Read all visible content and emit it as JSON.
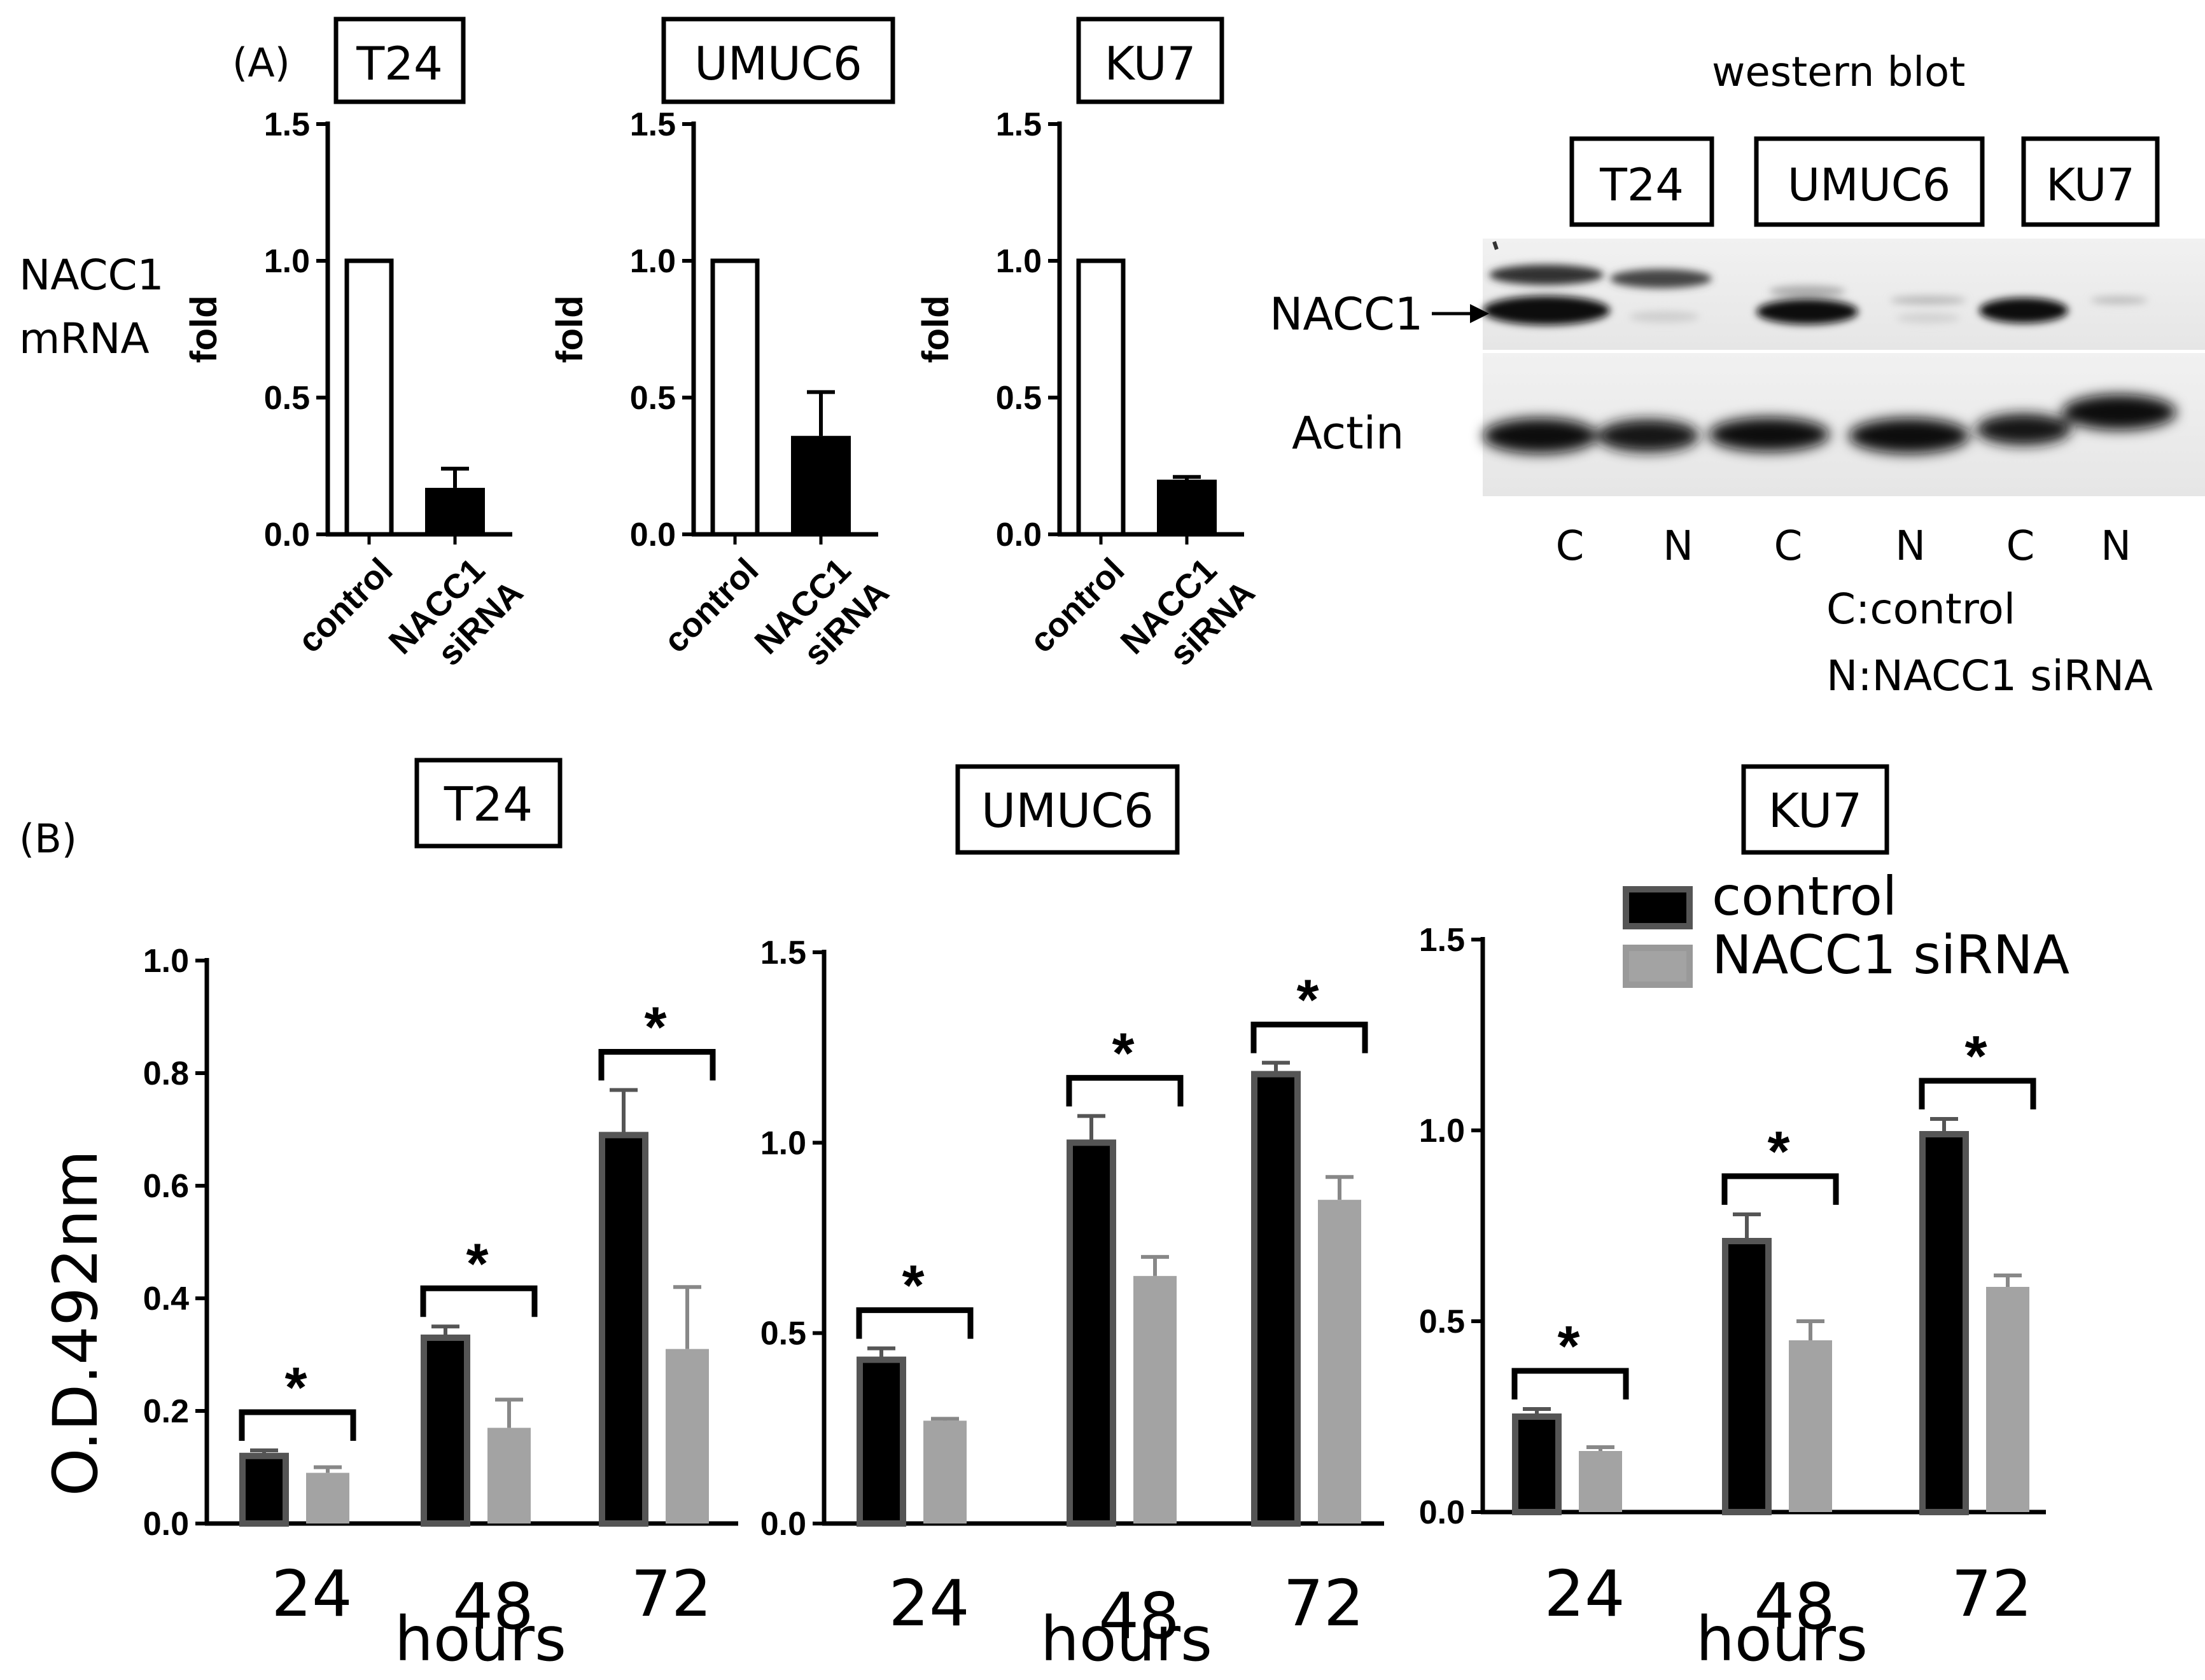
{
  "panel_labels": {
    "a": "(A)",
    "b": "(B)"
  },
  "panel_a": {
    "ylabel_left": [
      "NACC1",
      "mRNA"
    ],
    "charts": [
      {
        "cell_line": "T24",
        "ylabel": "fold"
      },
      {
        "cell_line": "UMUC6",
        "ylabel": "fold"
      },
      {
        "cell_line": "KU7",
        "ylabel": "fold"
      }
    ],
    "x_labels": {
      "control": "control",
      "nacc1_line1": "NACC1",
      "nacc1_line2": "siRNA"
    }
  },
  "western_blot": {
    "title": "western blot",
    "cell_lines": [
      "T24",
      "UMUC6",
      "KU7"
    ],
    "band_labels": {
      "nacc1": "NACC1",
      "actin": "Actin"
    },
    "arrow": "→",
    "lanes": [
      "C",
      "N",
      "C",
      "N",
      "C",
      "N"
    ],
    "key": [
      "C:control",
      "N:NACC1 siRNA"
    ]
  },
  "panel_b": {
    "ylabel": "O.D.492nm",
    "xlabel": "hours",
    "charts": [
      {
        "cell_line": "T24"
      },
      {
        "cell_line": "UMUC6"
      },
      {
        "cell_line": "KU7"
      }
    ],
    "legend": {
      "control": "control",
      "sirna": "NACC1 siRNA"
    },
    "significance": "*"
  },
  "colors": {
    "control_fill": "#000000",
    "control_edge": "#555555",
    "sirna_fill": "#a3a3a3",
    "sirna_edge": "#888888",
    "open_bar": "#ffffff",
    "solid_bar": "#000000"
  },
  "chart_data": [
    {
      "type": "bar",
      "cell_line": "T24",
      "categories": [
        "control",
        "NACC1 siRNA"
      ],
      "values": [
        1.0,
        0.17
      ],
      "errors": [
        0,
        0.07
      ],
      "ylabel": "fold",
      "ylim": [
        0,
        1.5
      ],
      "yticks": [
        "0.0",
        "0.5",
        "1.0",
        "1.5"
      ]
    },
    {
      "type": "bar",
      "cell_line": "UMUC6",
      "categories": [
        "control",
        "NACC1 siRNA"
      ],
      "values": [
        1.0,
        0.36
      ],
      "errors": [
        0,
        0.16
      ],
      "ylabel": "fold",
      "ylim": [
        0,
        1.5
      ],
      "yticks": [
        "0.0",
        "0.5",
        "1.0",
        "1.5"
      ]
    },
    {
      "type": "bar",
      "cell_line": "KU7",
      "categories": [
        "control",
        "NACC1 siRNA"
      ],
      "values": [
        1.0,
        0.2
      ],
      "errors": [
        0,
        0.01
      ],
      "ylabel": "fold",
      "ylim": [
        0,
        1.5
      ],
      "yticks": [
        "0.0",
        "0.5",
        "1.0",
        "1.5"
      ]
    },
    {
      "type": "bar",
      "cell_line": "T24",
      "categories": [
        "24",
        "48",
        "72"
      ],
      "series": [
        {
          "name": "control",
          "values": [
            0.12,
            0.33,
            0.69
          ],
          "errors": [
            0.01,
            0.02,
            0.08
          ]
        },
        {
          "name": "NACC1 siRNA",
          "values": [
            0.09,
            0.17,
            0.31
          ],
          "errors": [
            0.01,
            0.05,
            0.11
          ]
        }
      ],
      "xlabel": "hours",
      "ylabel": "O.D.492nm",
      "ylim": [
        0,
        1.0
      ],
      "yticks": [
        "0.0",
        "0.2",
        "0.4",
        "0.6",
        "0.8",
        "1.0"
      ],
      "significant": [
        true,
        true,
        true
      ]
    },
    {
      "type": "bar",
      "cell_line": "UMUC6",
      "categories": [
        "24",
        "48",
        "72"
      ],
      "series": [
        {
          "name": "control",
          "values": [
            0.43,
            1.0,
            1.18
          ],
          "errors": [
            0.03,
            0.07,
            0.03
          ]
        },
        {
          "name": "NACC1 siRNA",
          "values": [
            0.27,
            0.65,
            0.85
          ],
          "errors": [
            0.005,
            0.05,
            0.06
          ]
        }
      ],
      "xlabel": "hours",
      "ylim": [
        0,
        1.5
      ],
      "yticks": [
        "0.0",
        "0.5",
        "1.0",
        "1.5"
      ],
      "significant": [
        true,
        true,
        true
      ]
    },
    {
      "type": "bar",
      "cell_line": "KU7",
      "categories": [
        "24",
        "48",
        "72"
      ],
      "series": [
        {
          "name": "control",
          "values": [
            0.25,
            0.71,
            0.99
          ],
          "errors": [
            0.02,
            0.07,
            0.04
          ]
        },
        {
          "name": "NACC1 siRNA",
          "values": [
            0.16,
            0.45,
            0.59
          ],
          "errors": [
            0.01,
            0.05,
            0.03
          ]
        }
      ],
      "xlabel": "hours",
      "ylim": [
        0,
        1.5
      ],
      "yticks": [
        "0.0",
        "0.5",
        "1.0",
        "1.5"
      ],
      "significant": [
        true,
        true,
        true
      ],
      "legend_position": "top-right"
    }
  ]
}
